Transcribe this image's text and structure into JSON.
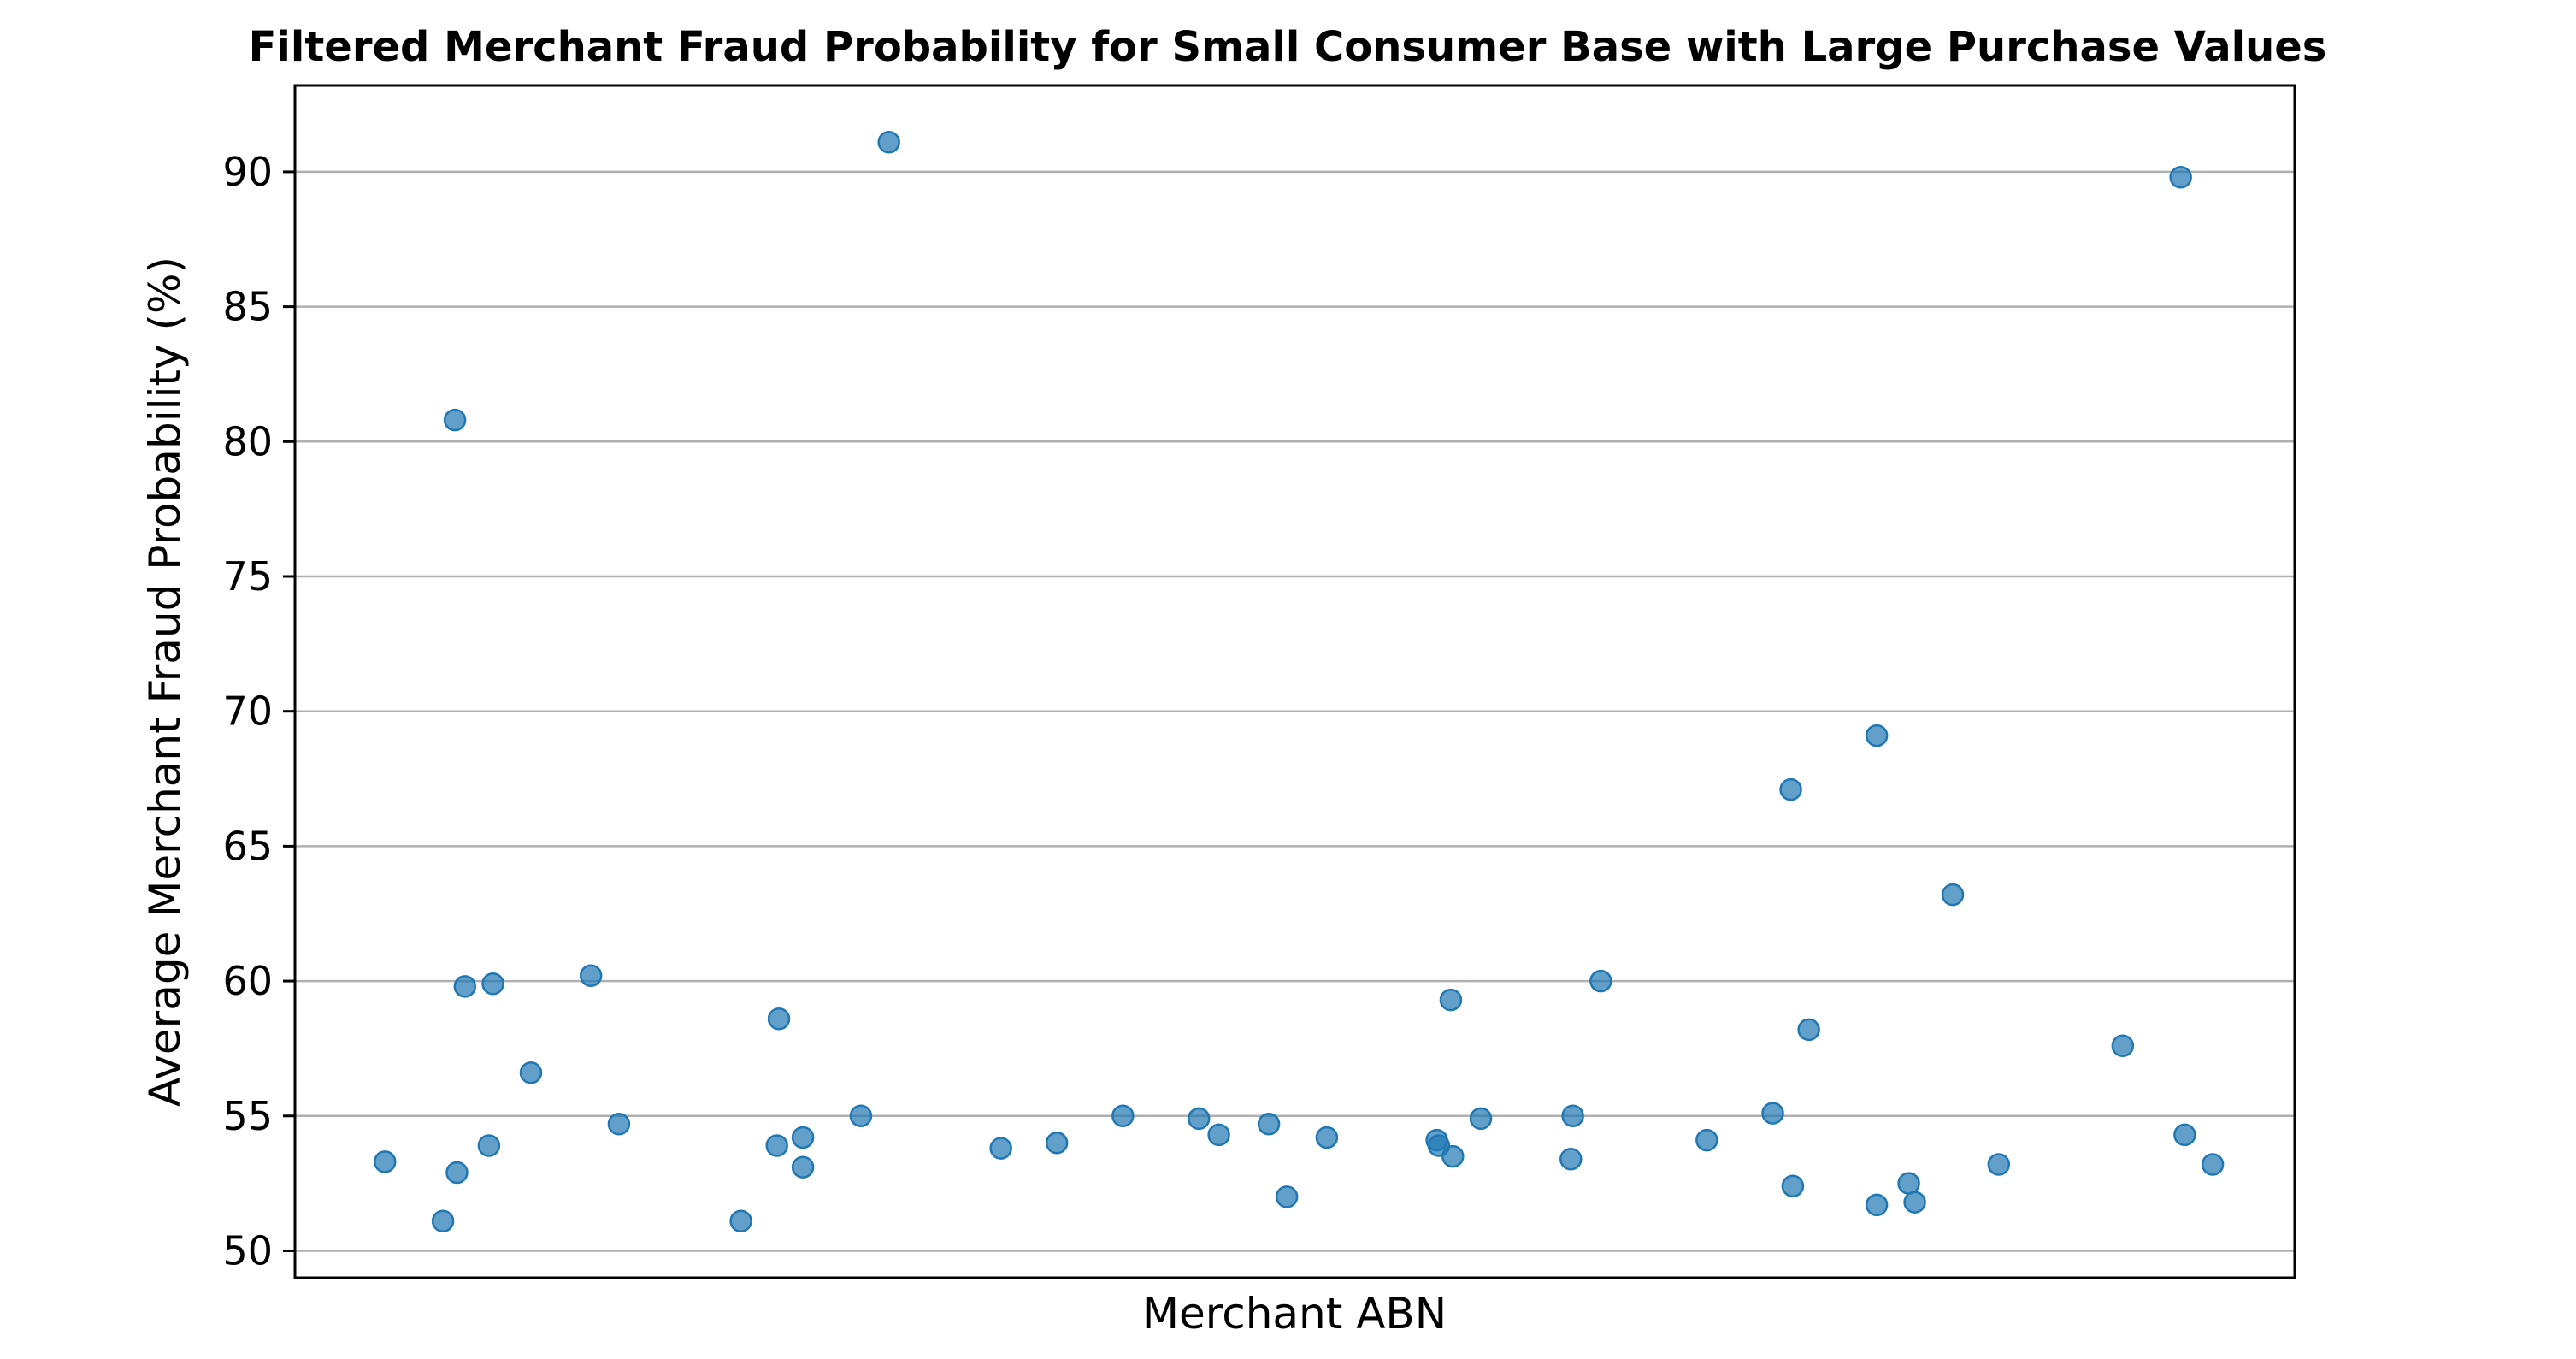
{
  "chart_data": {
    "type": "scatter",
    "title": "Filtered Merchant Fraud Probability for Small Consumer Base with Large Purchase Values",
    "xlabel": "Merchant ABN",
    "ylabel": "Average Merchant Fraud Probability (%)",
    "ylim": [
      49.0,
      93.2
    ],
    "xlim": [
      0,
      100
    ],
    "xticks_visible": false,
    "grid": "horizontal",
    "legend": "none",
    "yticks": [
      50,
      55,
      60,
      65,
      70,
      75,
      80,
      85,
      90
    ],
    "y_tick_labels": [
      "50",
      "55",
      "60",
      "65",
      "70",
      "75",
      "80",
      "85",
      "90"
    ],
    "series": [
      {
        "color": "#1f77b4",
        "points": [
          {
            "x": 4.5,
            "y": 53.3
          },
          {
            "x": 7.4,
            "y": 51.1
          },
          {
            "x": 8.0,
            "y": 80.8
          },
          {
            "x": 8.1,
            "y": 52.9
          },
          {
            "x": 8.5,
            "y": 59.8
          },
          {
            "x": 9.7,
            "y": 53.9
          },
          {
            "x": 9.9,
            "y": 59.9
          },
          {
            "x": 11.8,
            "y": 56.6
          },
          {
            "x": 14.8,
            "y": 60.2
          },
          {
            "x": 16.2,
            "y": 54.7
          },
          {
            "x": 22.3,
            "y": 51.1
          },
          {
            "x": 24.1,
            "y": 53.9
          },
          {
            "x": 24.2,
            "y": 58.6
          },
          {
            "x": 25.4,
            "y": 54.2
          },
          {
            "x": 25.4,
            "y": 53.1
          },
          {
            "x": 28.3,
            "y": 55.0
          },
          {
            "x": 29.7,
            "y": 91.1
          },
          {
            "x": 35.3,
            "y": 53.8
          },
          {
            "x": 38.1,
            "y": 54.0
          },
          {
            "x": 41.4,
            "y": 55.0
          },
          {
            "x": 45.2,
            "y": 54.9
          },
          {
            "x": 46.2,
            "y": 54.3
          },
          {
            "x": 48.7,
            "y": 54.7
          },
          {
            "x": 49.6,
            "y": 52.0
          },
          {
            "x": 51.6,
            "y": 54.2
          },
          {
            "x": 57.1,
            "y": 54.1
          },
          {
            "x": 57.2,
            "y": 53.9
          },
          {
            "x": 57.8,
            "y": 59.3
          },
          {
            "x": 57.9,
            "y": 53.5
          },
          {
            "x": 59.3,
            "y": 54.9
          },
          {
            "x": 63.8,
            "y": 53.4
          },
          {
            "x": 63.9,
            "y": 55.0
          },
          {
            "x": 65.3,
            "y": 60.0
          },
          {
            "x": 70.6,
            "y": 54.1
          },
          {
            "x": 73.9,
            "y": 55.1
          },
          {
            "x": 74.8,
            "y": 67.1
          },
          {
            "x": 74.9,
            "y": 52.4
          },
          {
            "x": 75.7,
            "y": 58.2
          },
          {
            "x": 79.1,
            "y": 69.1
          },
          {
            "x": 79.1,
            "y": 51.7
          },
          {
            "x": 80.7,
            "y": 52.5
          },
          {
            "x": 81.0,
            "y": 51.8
          },
          {
            "x": 82.9,
            "y": 63.2
          },
          {
            "x": 85.2,
            "y": 53.2
          },
          {
            "x": 91.4,
            "y": 57.6
          },
          {
            "x": 94.3,
            "y": 89.8
          },
          {
            "x": 94.5,
            "y": 54.3
          },
          {
            "x": 95.9,
            "y": 53.2
          }
        ]
      }
    ]
  }
}
